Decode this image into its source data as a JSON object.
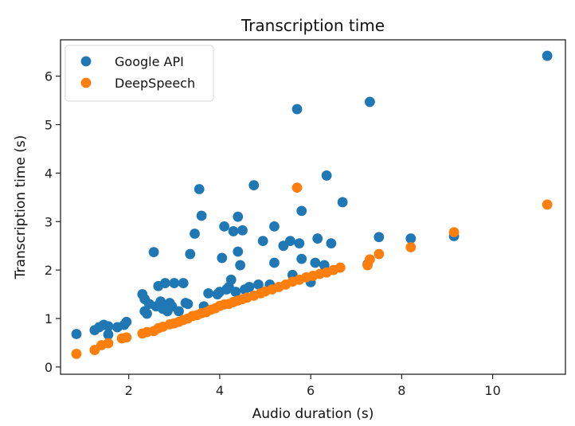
{
  "chart_data": {
    "type": "scatter",
    "title": "Transcription time",
    "xlabel": "Audio duration (s)",
    "ylabel": "Transcription time (s)",
    "xlim": [
      0.5,
      11.6
    ],
    "ylim": [
      -0.15,
      6.75
    ],
    "xticks": [
      2,
      4,
      6,
      8,
      10
    ],
    "yticks": [
      0,
      1,
      2,
      3,
      4,
      5,
      6
    ],
    "grid": false,
    "legend_position": "top-left",
    "series": [
      {
        "name": "Google API",
        "color": "#1f77b4",
        "points": [
          [
            0.85,
            0.68
          ],
          [
            1.25,
            0.76
          ],
          [
            1.35,
            0.82
          ],
          [
            1.45,
            0.87
          ],
          [
            1.55,
            0.84
          ],
          [
            1.55,
            0.67
          ],
          [
            1.75,
            0.82
          ],
          [
            1.9,
            0.87
          ],
          [
            1.95,
            0.93
          ],
          [
            2.3,
            1.5
          ],
          [
            2.35,
            1.4
          ],
          [
            2.35,
            1.15
          ],
          [
            2.4,
            1.1
          ],
          [
            2.45,
            1.3
          ],
          [
            2.55,
            2.37
          ],
          [
            2.6,
            1.25
          ],
          [
            2.65,
            1.67
          ],
          [
            2.7,
            1.35
          ],
          [
            2.75,
            1.2
          ],
          [
            2.8,
            1.73
          ],
          [
            2.85,
            1.15
          ],
          [
            2.9,
            1.32
          ],
          [
            2.95,
            1.25
          ],
          [
            3.0,
            1.73
          ],
          [
            3.1,
            1.15
          ],
          [
            3.2,
            1.73
          ],
          [
            3.25,
            1.32
          ],
          [
            3.3,
            1.3
          ],
          [
            3.35,
            2.33
          ],
          [
            3.45,
            2.75
          ],
          [
            3.55,
            3.67
          ],
          [
            3.6,
            3.12
          ],
          [
            3.65,
            1.25
          ],
          [
            3.75,
            1.52
          ],
          [
            3.95,
            1.5
          ],
          [
            4.0,
            1.55
          ],
          [
            4.05,
            2.25
          ],
          [
            4.1,
            2.9
          ],
          [
            4.15,
            1.6
          ],
          [
            4.2,
            1.65
          ],
          [
            4.25,
            1.8
          ],
          [
            4.3,
            2.8
          ],
          [
            4.35,
            1.55
          ],
          [
            4.4,
            3.1
          ],
          [
            4.4,
            2.38
          ],
          [
            4.45,
            2.1
          ],
          [
            4.5,
            2.82
          ],
          [
            4.55,
            1.6
          ],
          [
            4.65,
            1.65
          ],
          [
            4.75,
            3.75
          ],
          [
            4.85,
            1.7
          ],
          [
            4.95,
            2.6
          ],
          [
            5.1,
            1.7
          ],
          [
            5.2,
            2.9
          ],
          [
            5.2,
            2.15
          ],
          [
            5.4,
            2.5
          ],
          [
            5.55,
            2.6
          ],
          [
            5.6,
            1.9
          ],
          [
            5.7,
            5.32
          ],
          [
            5.75,
            2.55
          ],
          [
            5.8,
            3.22
          ],
          [
            5.8,
            2.23
          ],
          [
            6.0,
            1.75
          ],
          [
            6.1,
            2.15
          ],
          [
            6.15,
            2.65
          ],
          [
            6.3,
            2.1
          ],
          [
            6.35,
            3.95
          ],
          [
            6.45,
            2.55
          ],
          [
            6.7,
            3.4
          ],
          [
            7.25,
            2.12
          ],
          [
            7.3,
            5.47
          ],
          [
            7.5,
            2.68
          ],
          [
            8.2,
            2.65
          ],
          [
            9.15,
            2.7
          ],
          [
            11.2,
            6.42
          ]
        ]
      },
      {
        "name": "DeepSpeech",
        "color": "#ff7f0e",
        "points": [
          [
            0.85,
            0.27
          ],
          [
            1.25,
            0.35
          ],
          [
            1.4,
            0.45
          ],
          [
            1.55,
            0.49
          ],
          [
            1.85,
            0.59
          ],
          [
            1.95,
            0.61
          ],
          [
            2.3,
            0.69
          ],
          [
            2.4,
            0.72
          ],
          [
            2.55,
            0.74
          ],
          [
            2.65,
            0.8
          ],
          [
            2.75,
            0.83
          ],
          [
            2.9,
            0.88
          ],
          [
            3.0,
            0.9
          ],
          [
            3.1,
            0.93
          ],
          [
            3.2,
            0.97
          ],
          [
            3.3,
            1.0
          ],
          [
            3.4,
            1.05
          ],
          [
            3.5,
            1.07
          ],
          [
            3.6,
            1.11
          ],
          [
            3.7,
            1.13
          ],
          [
            3.8,
            1.18
          ],
          [
            3.9,
            1.21
          ],
          [
            4.0,
            1.26
          ],
          [
            4.1,
            1.29
          ],
          [
            4.2,
            1.3
          ],
          [
            4.3,
            1.34
          ],
          [
            4.4,
            1.37
          ],
          [
            4.5,
            1.4
          ],
          [
            4.6,
            1.43
          ],
          [
            4.75,
            1.47
          ],
          [
            4.9,
            1.52
          ],
          [
            5.0,
            1.56
          ],
          [
            5.15,
            1.6
          ],
          [
            5.3,
            1.65
          ],
          [
            5.45,
            1.7
          ],
          [
            5.6,
            1.76
          ],
          [
            5.7,
            3.7
          ],
          [
            5.75,
            1.8
          ],
          [
            5.9,
            1.85
          ],
          [
            6.05,
            1.88
          ],
          [
            6.2,
            1.92
          ],
          [
            6.35,
            1.95
          ],
          [
            6.5,
            2.0
          ],
          [
            6.65,
            2.05
          ],
          [
            7.25,
            2.1
          ],
          [
            7.3,
            2.22
          ],
          [
            7.5,
            2.33
          ],
          [
            8.2,
            2.47
          ],
          [
            9.15,
            2.78
          ],
          [
            11.2,
            3.35
          ]
        ]
      }
    ]
  }
}
